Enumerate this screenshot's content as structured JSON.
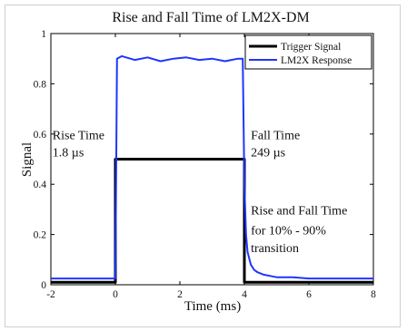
{
  "chart_data": {
    "type": "line",
    "title": "Rise and Fall Time of LM2X-DM",
    "xlabel": "Time (ms)",
    "ylabel": "Signal",
    "xlim": [
      -2,
      8
    ],
    "ylim": [
      0,
      1
    ],
    "xticks": [
      "-2",
      "0",
      "2",
      "4",
      "6",
      "8"
    ],
    "yticks": [
      "0",
      "0.2",
      "0.4",
      "0.6",
      "0.8",
      "1"
    ],
    "grid": false,
    "legend_position": "top-right",
    "series": [
      {
        "name": "Trigger Signal",
        "color": "#000000",
        "x": [
          -2,
          0,
          0,
          4,
          4,
          8
        ],
        "y": [
          0.01,
          0.01,
          0.5,
          0.5,
          0.01,
          0.01
        ]
      },
      {
        "name": "LM2X Response",
        "color": "#1f35ff",
        "x": [
          -2,
          -1,
          0,
          0.05,
          0.2,
          0.6,
          1.0,
          1.4,
          1.8,
          2.2,
          2.6,
          3.0,
          3.4,
          3.8,
          3.95,
          4.0,
          4.05,
          4.1,
          4.2,
          4.3,
          4.4,
          4.6,
          4.8,
          5.0,
          5.5,
          6.0,
          7.0,
          8.0
        ],
        "y": [
          0.025,
          0.025,
          0.025,
          0.9,
          0.91,
          0.895,
          0.905,
          0.89,
          0.9,
          0.905,
          0.895,
          0.9,
          0.89,
          0.9,
          0.9,
          0.4,
          0.2,
          0.13,
          0.08,
          0.06,
          0.05,
          0.04,
          0.035,
          0.03,
          0.03,
          0.025,
          0.025,
          0.025
        ]
      }
    ],
    "annotations": [
      {
        "id": "rise_title",
        "text": "Rise Time",
        "x": -1.95,
        "y": 0.58
      },
      {
        "id": "rise_value",
        "text": "1.8 µs",
        "x": -1.95,
        "y": 0.51
      },
      {
        "id": "fall_title",
        "text": "Fall Time",
        "x": 4.2,
        "y": 0.58
      },
      {
        "id": "fall_value",
        "text": "249 µs",
        "x": 4.2,
        "y": 0.51
      },
      {
        "id": "rf_line1",
        "text": "Rise and Fall Time",
        "x": 4.2,
        "y": 0.28
      },
      {
        "id": "rf_line2",
        "text": "for 10% - 90%",
        "x": 4.2,
        "y": 0.2
      },
      {
        "id": "rf_line3",
        "text": "transition",
        "x": 4.2,
        "y": 0.13
      }
    ]
  }
}
